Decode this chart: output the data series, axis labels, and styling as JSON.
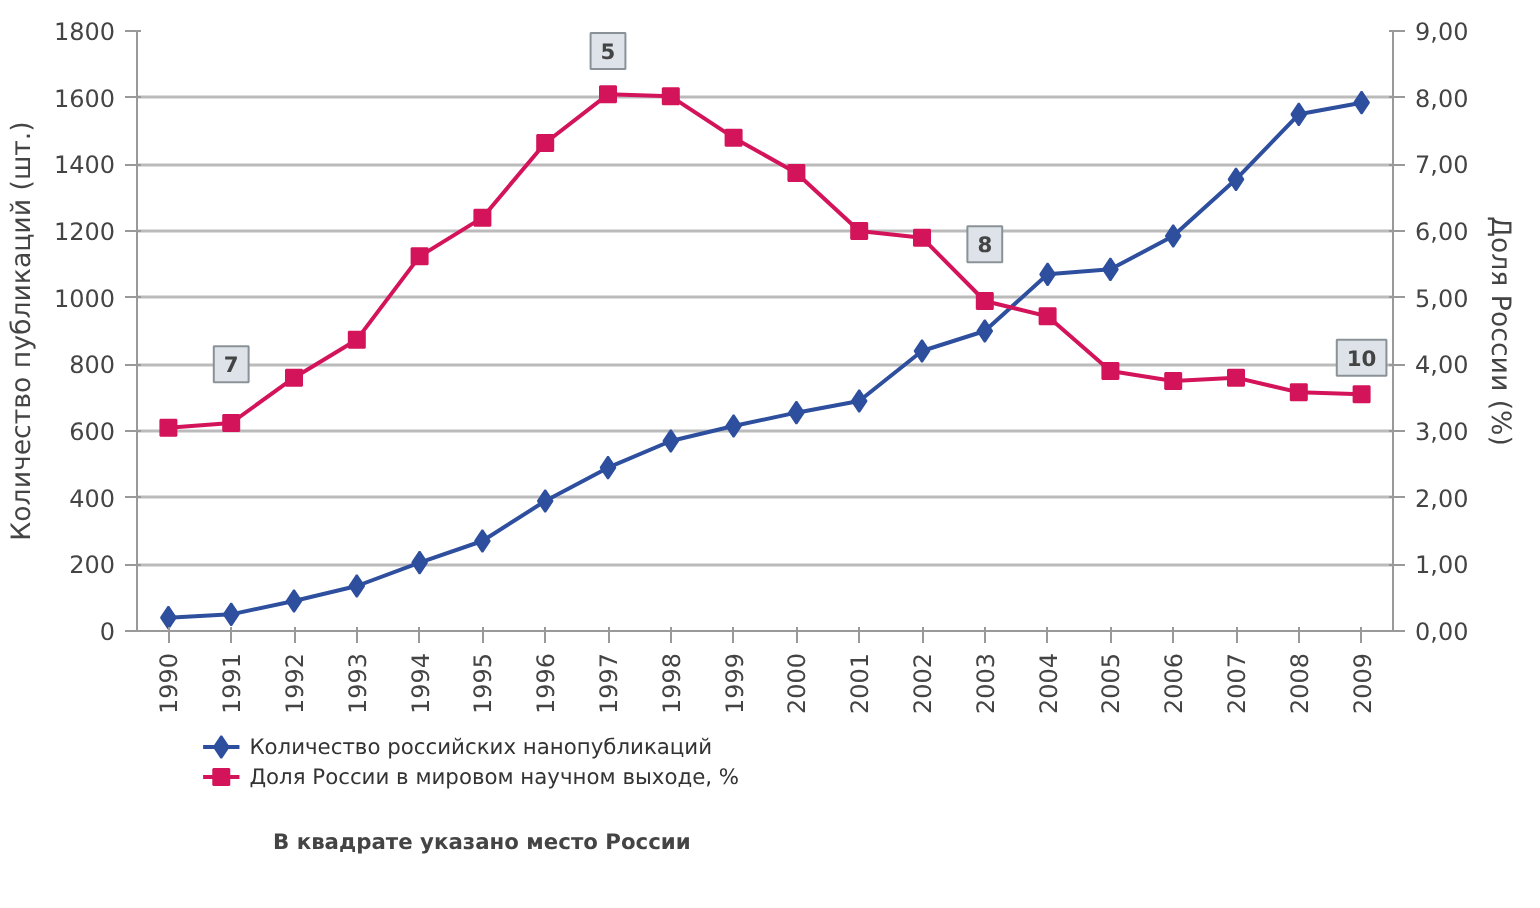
{
  "chart_data": {
    "type": "line",
    "xlabel": null,
    "ylabel": "Количество публикаций (шт.)",
    "y2label": "Доля России (%)",
    "categories": [
      "1990",
      "1991",
      "1992",
      "1993",
      "1994",
      "1995",
      "1996",
      "1997",
      "1998",
      "1999",
      "2000",
      "2001",
      "2002",
      "2003",
      "2004",
      "2005",
      "2006",
      "2007",
      "2008",
      "2009"
    ],
    "series": [
      {
        "name": "Количество российских нанопубликаций",
        "color": "#2e4f9e",
        "marker": "diamond",
        "values": [
          40,
          50,
          90,
          135,
          205,
          270,
          390,
          490,
          570,
          615,
          655,
          690,
          840,
          900,
          1070,
          1085,
          1185,
          1355,
          1550,
          1585
        ]
      },
      {
        "name": "Доля России в мировом научном выходе, %",
        "color": "#d4145a",
        "marker": "square",
        "axis": "y2",
        "values": [
          3.05,
          3.12,
          3.8,
          4.37,
          5.62,
          6.2,
          7.32,
          8.05,
          8.02,
          7.4,
          6.87,
          6.0,
          5.9,
          4.95,
          4.72,
          3.9,
          3.75,
          3.8,
          3.58,
          3.55
        ]
      }
    ],
    "ylim": [
      0,
      1800
    ],
    "yticks": [
      0,
      200,
      400,
      600,
      800,
      1000,
      1200,
      1400,
      1600,
      1800
    ],
    "y2lim": [
      0,
      9
    ],
    "y2ticks": [
      {
        "value": 0,
        "label": "0,00"
      },
      {
        "value": 1,
        "label": "1,00"
      },
      {
        "value": 2,
        "label": "2,00"
      },
      {
        "value": 3,
        "label": "3,00"
      },
      {
        "value": 4,
        "label": "4,00"
      },
      {
        "value": 5,
        "label": "5,00"
      },
      {
        "value": 6,
        "label": "6,00"
      },
      {
        "value": 7,
        "label": "7,00"
      },
      {
        "value": 8,
        "label": "8,00"
      },
      {
        "value": 9,
        "label": "9,00"
      }
    ],
    "grid": "y",
    "legend": "bottom left",
    "line_style": "solid",
    "annotations": [
      {
        "text": "7",
        "x": "1991",
        "y": 800
      },
      {
        "text": "5",
        "x": "1997",
        "y": 1740
      },
      {
        "text": "8",
        "x": "2003",
        "y": 1160
      },
      {
        "text": "10",
        "x": "2009",
        "y": 820
      },
      "В квадрате указано место России"
    ]
  }
}
